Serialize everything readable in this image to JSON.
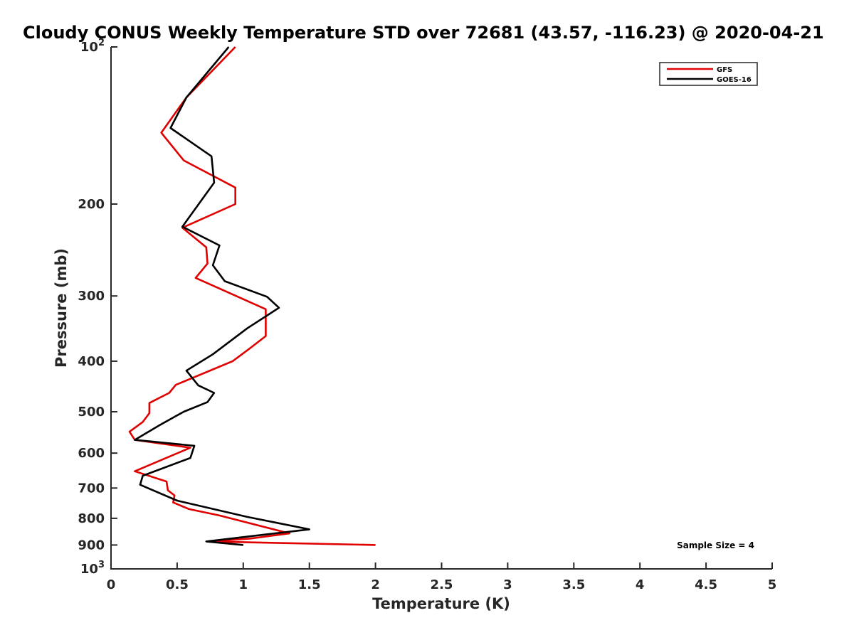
{
  "chart_data": {
    "type": "line",
    "title": "Cloudy CONUS Weekly Temperature STD over 72681 (43.57, -116.23) @ 2020-04-21",
    "xlabel": "Temperature (K)",
    "ylabel": "Pressure (mb)",
    "xlim": [
      0,
      5
    ],
    "ylim": [
      100,
      1000
    ],
    "y_scale": "log",
    "y_reversed": true,
    "grid": false,
    "x_ticks": [
      {
        "value": 0,
        "label": "0"
      },
      {
        "value": 0.5,
        "label": "0.5"
      },
      {
        "value": 1,
        "label": "1"
      },
      {
        "value": 1.5,
        "label": "1.5"
      },
      {
        "value": 2,
        "label": "2"
      },
      {
        "value": 2.5,
        "label": "2.5"
      },
      {
        "value": 3,
        "label": "3"
      },
      {
        "value": 3.5,
        "label": "3.5"
      },
      {
        "value": 4,
        "label": "4"
      },
      {
        "value": 4.5,
        "label": "4.5"
      },
      {
        "value": 5,
        "label": "5"
      }
    ],
    "y_ticks": [
      {
        "value": 100,
        "base": "10",
        "exp": "2"
      },
      {
        "value": 200,
        "label": "200"
      },
      {
        "value": 300,
        "label": "300"
      },
      {
        "value": 400,
        "label": "400"
      },
      {
        "value": 500,
        "label": "500"
      },
      {
        "value": 600,
        "label": "600"
      },
      {
        "value": 700,
        "label": "700"
      },
      {
        "value": 800,
        "label": "800"
      },
      {
        "value": 900,
        "label": "900"
      },
      {
        "value": 1000,
        "base": "10",
        "exp": "3"
      }
    ],
    "legend_position": "top-right",
    "series": [
      {
        "name": "GFS",
        "color": "#e00000",
        "points": [
          [
            0.94,
            100
          ],
          [
            0.57,
            125
          ],
          [
            0.38,
            146
          ],
          [
            0.55,
            165
          ],
          [
            0.94,
            186
          ],
          [
            0.94,
            200
          ],
          [
            0.54,
            222
          ],
          [
            0.72,
            242
          ],
          [
            0.73,
            260
          ],
          [
            0.64,
            277
          ],
          [
            1.17,
            318
          ],
          [
            1.17,
            358
          ],
          [
            1.05,
            378
          ],
          [
            0.92,
            400
          ],
          [
            0.49,
            444
          ],
          [
            0.44,
            460
          ],
          [
            0.29,
            481
          ],
          [
            0.29,
            503
          ],
          [
            0.24,
            523
          ],
          [
            0.14,
            546
          ],
          [
            0.18,
            566
          ],
          [
            0.6,
            586
          ],
          [
            0.18,
            650
          ],
          [
            0.42,
            680
          ],
          [
            0.43,
            707
          ],
          [
            0.48,
            723
          ],
          [
            0.47,
            746
          ],
          [
            0.59,
            768
          ],
          [
            0.82,
            790
          ],
          [
            1.35,
            855
          ],
          [
            1.05,
            875
          ],
          [
            0.73,
            886
          ],
          [
            2.0,
            900
          ]
        ]
      },
      {
        "name": "GOES-16",
        "color": "#000000",
        "points": [
          [
            0.89,
            100
          ],
          [
            0.57,
            125
          ],
          [
            0.45,
            143
          ],
          [
            0.76,
            162
          ],
          [
            0.78,
            182
          ],
          [
            0.54,
            221
          ],
          [
            0.82,
            240
          ],
          [
            0.77,
            262
          ],
          [
            0.86,
            281
          ],
          [
            1.18,
            301
          ],
          [
            1.27,
            316
          ],
          [
            1.03,
            346
          ],
          [
            0.77,
            388
          ],
          [
            0.57,
            417
          ],
          [
            0.66,
            445
          ],
          [
            0.78,
            460
          ],
          [
            0.73,
            479
          ],
          [
            0.55,
            500
          ],
          [
            0.37,
            530
          ],
          [
            0.18,
            566
          ],
          [
            0.63,
            581
          ],
          [
            0.6,
            613
          ],
          [
            0.24,
            663
          ],
          [
            0.22,
            690
          ],
          [
            0.5,
            740
          ],
          [
            1.03,
            795
          ],
          [
            1.5,
            840
          ],
          [
            0.72,
            886
          ],
          [
            1.0,
            900
          ]
        ]
      }
    ],
    "annotations": [
      {
        "text": "Sample Size = 4",
        "position": "bottom-right"
      }
    ]
  }
}
